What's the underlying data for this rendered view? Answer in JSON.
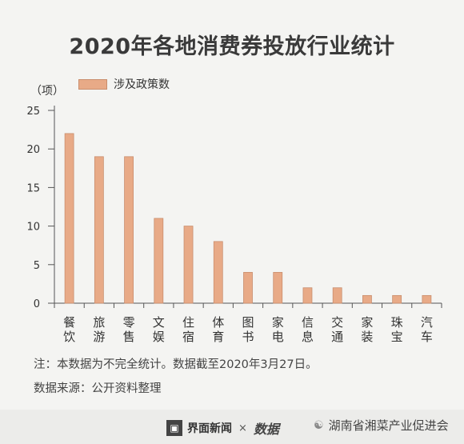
{
  "title": "2020年各地消费券投放行业统计",
  "footnotes": {
    "note": "注：本数据为不完全统计。数据截至2020年3月27日。",
    "source": "数据来源：公开资料整理"
  },
  "footer": {
    "brand": "界面新闻",
    "separator": "×",
    "logo": "数据",
    "wechat_account": "湖南省湘菜产业促进会"
  },
  "chart_data": {
    "type": "bar",
    "title": "2020年各地消费券投放行业统计",
    "ylabel": "（项）",
    "ylim": [
      0,
      25
    ],
    "yticks": [
      0,
      5,
      10,
      15,
      20,
      25
    ],
    "categories": [
      "餐饮",
      "旅游",
      "零售",
      "文娱",
      "住宿",
      "体育",
      "图书",
      "家电",
      "信息",
      "交通",
      "家装",
      "珠宝",
      "汽车"
    ],
    "series": [
      {
        "name": "涉及政策数",
        "values": [
          22,
          19,
          19,
          11,
          10,
          8,
          4,
          4,
          2,
          2,
          1,
          1,
          1
        ]
      }
    ],
    "bar_color": "#e8aa87",
    "bar_edge_color": "#c98e6d",
    "grid": false,
    "legend": "top-left"
  }
}
